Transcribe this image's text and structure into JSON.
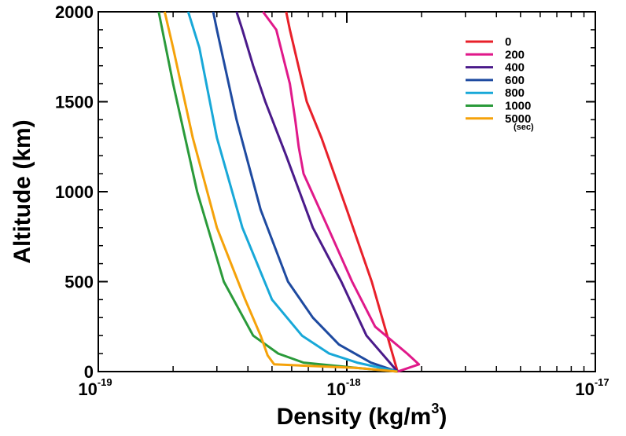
{
  "chart_data": {
    "type": "line",
    "title": "",
    "xlabel": "Density (kg/m",
    "xlabel_sup": "3",
    "xlabel_close": ")",
    "ylabel": "Altitude (km)",
    "xscale": "log",
    "xlim": [
      1e-19,
      1e-17
    ],
    "ylim": [
      0,
      2000
    ],
    "grid": false,
    "legend_position": "top-right",
    "legend_unit": "(sec)",
    "x_ticks": [
      {
        "value": 1e-19,
        "base": "10",
        "exp": "-19"
      },
      {
        "value": 1e-18,
        "base": "10",
        "exp": "-18"
      },
      {
        "value": 1e-17,
        "base": "10",
        "exp": "-17"
      }
    ],
    "y_ticks": [
      {
        "value": 0,
        "label": "0"
      },
      {
        "value": 500,
        "label": "500"
      },
      {
        "value": 1000,
        "label": "1000"
      },
      {
        "value": 1500,
        "label": "1500"
      },
      {
        "value": 2000,
        "label": "2000"
      }
    ],
    "series": [
      {
        "name": "0",
        "color": "#e8202a",
        "x": [
          1.6e-18,
          1.26e-18,
          1e-18,
          7.9e-19,
          6.9e-19,
          5.9e-19,
          5.7e-19
        ],
        "y": [
          0,
          500,
          900,
          1300,
          1500,
          1900,
          2000
        ]
      },
      {
        "name": "200",
        "color": "#e0198a",
        "x": [
          1.6e-18,
          1.95e-18,
          1.75e-18,
          1.3e-18,
          1.05e-18,
          8.4e-19,
          6.7e-19,
          6.4e-19,
          6.2e-19,
          5.9e-19,
          5.2e-19,
          4.6e-19
        ],
        "y": [
          0,
          40,
          100,
          250,
          500,
          800,
          1100,
          1250,
          1400,
          1600,
          1900,
          2000
        ]
      },
      {
        "name": "400",
        "color": "#4a1a8a",
        "x": [
          1.6e-18,
          1.2e-18,
          9.5e-19,
          7.3e-19,
          5.7e-19,
          4.7e-19,
          4.2e-19,
          3.8e-19,
          3.6e-19
        ],
        "y": [
          0,
          200,
          500,
          800,
          1200,
          1500,
          1700,
          1900,
          2000
        ]
      },
      {
        "name": "600",
        "color": "#1e4aa0",
        "x": [
          1.6e-18,
          1.25e-18,
          9.3e-19,
          7.3e-19,
          5.8e-19,
          4.5e-19,
          3.6e-19,
          3e-19,
          2.9e-19
        ],
        "y": [
          0,
          50,
          150,
          300,
          500,
          900,
          1400,
          1900,
          2000
        ]
      },
      {
        "name": "800",
        "color": "#18a8d8",
        "x": [
          1.6e-18,
          1.1e-18,
          8.5e-19,
          6.6e-19,
          5e-19,
          3.8e-19,
          3e-19,
          2.55e-19,
          2.3e-19
        ],
        "y": [
          0,
          50,
          100,
          200,
          400,
          800,
          1300,
          1800,
          2000
        ]
      },
      {
        "name": "1000",
        "color": "#2a9a3a",
        "x": [
          1.6e-18,
          1.1e-18,
          6.7e-19,
          5.3e-19,
          4.2e-19,
          3.2e-19,
          2.5e-19,
          2e-19,
          1.75e-19
        ],
        "y": [
          0,
          20,
          50,
          100,
          200,
          500,
          1000,
          1600,
          2000
        ]
      },
      {
        "name": "5000",
        "color": "#f5a20a",
        "x": [
          1.6e-18,
          1.1e-18,
          5.1e-19,
          4.8e-19,
          4.5e-19,
          3.9e-19,
          3e-19,
          2.4e-19,
          2e-19,
          1.85e-19
        ],
        "y": [
          0,
          20,
          40,
          90,
          200,
          400,
          800,
          1300,
          1800,
          2000
        ]
      }
    ]
  }
}
